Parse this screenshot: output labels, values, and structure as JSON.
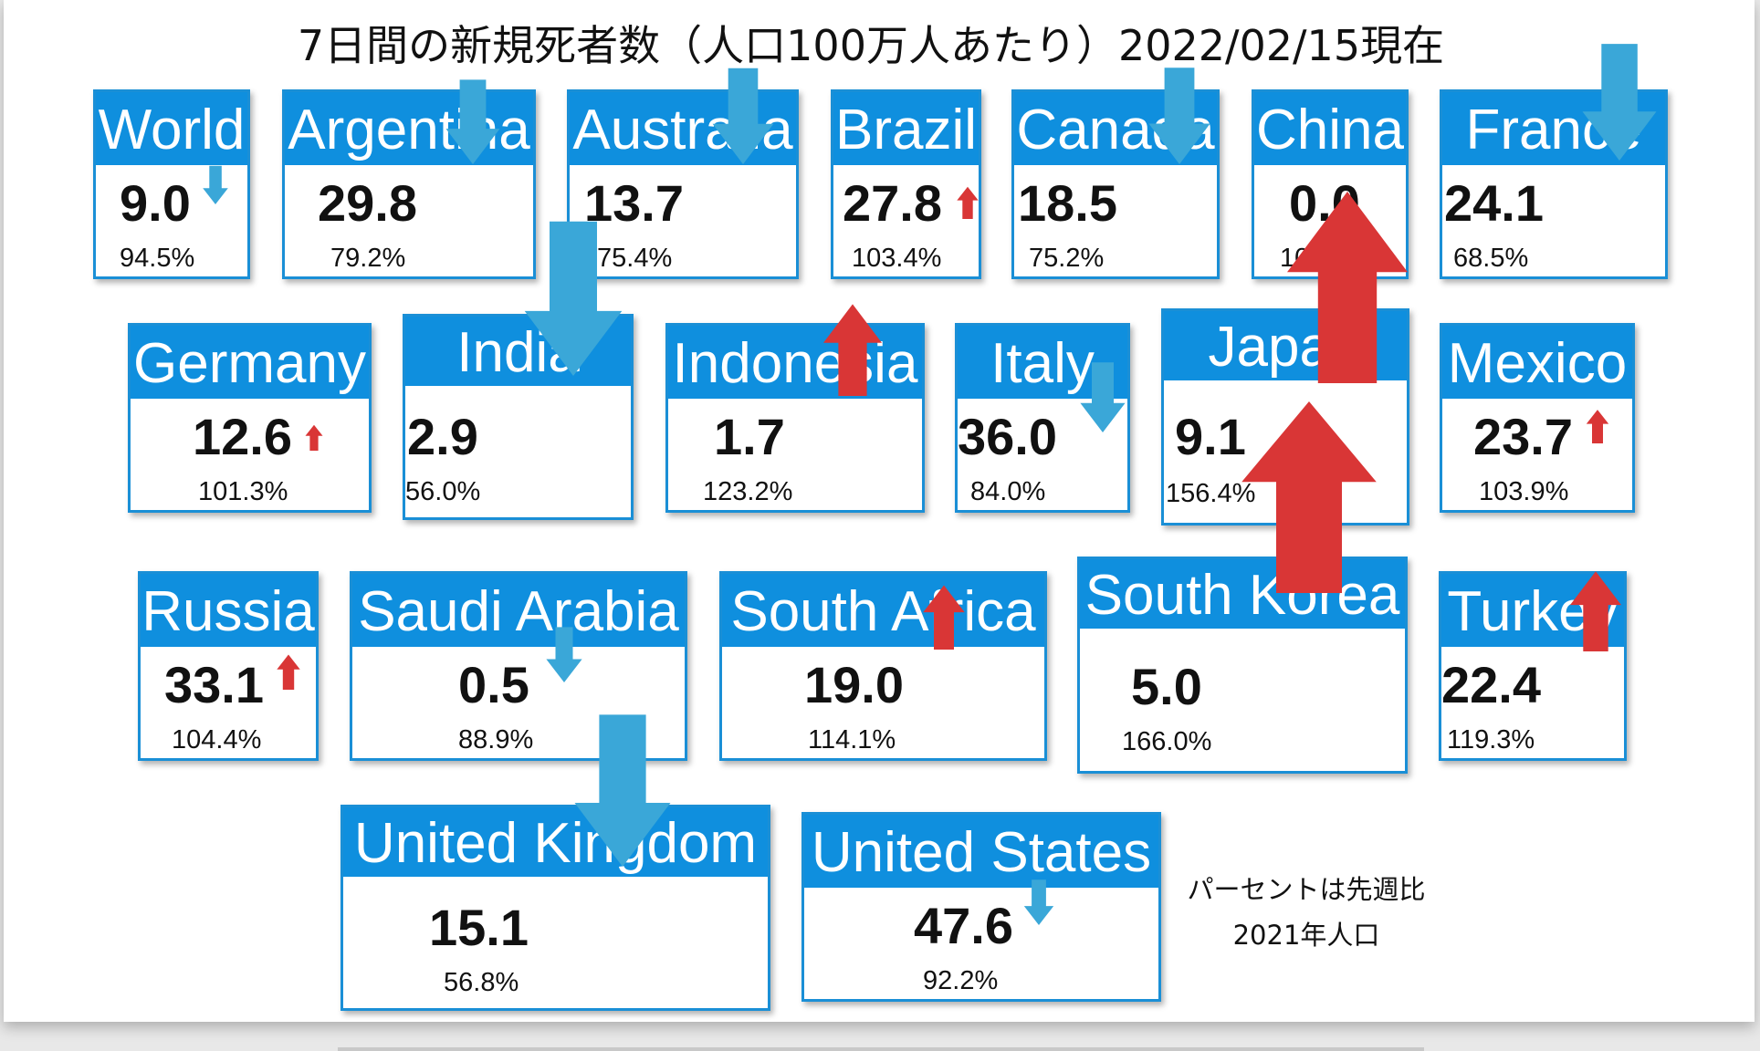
{
  "title": "7日間の新規死者数（人口100万人あたり）2022/02/15現在",
  "notes": [
    "パーセントは先週比",
    "2021年人口"
  ],
  "colors": {
    "header": "#0f8fde",
    "down": "#3aa7d8",
    "up": "#d93636"
  },
  "chart_data": {
    "type": "table",
    "title": "7日間の新規死者数（人口100万人あたり）2022/02/15現在",
    "columns": [
      "country",
      "deaths_per_million_7d",
      "week_over_week"
    ],
    "rows": [
      {
        "country": "World",
        "value": "9.0",
        "pct": "94.5%",
        "ratio": 0.945,
        "direction": "down"
      },
      {
        "country": "Argentina",
        "value": "29.8",
        "pct": "79.2%",
        "ratio": 0.792,
        "direction": "down"
      },
      {
        "country": "Australia",
        "value": "13.7",
        "pct": "75.4%",
        "ratio": 0.754,
        "direction": "down"
      },
      {
        "country": "Brazil",
        "value": "27.8",
        "pct": "103.4%",
        "ratio": 1.034,
        "direction": "up"
      },
      {
        "country": "Canada",
        "value": "18.5",
        "pct": "75.2%",
        "ratio": 0.752,
        "direction": "down"
      },
      {
        "country": "China",
        "value": "0.0",
        "pct": "100.0%",
        "ratio": 1.0,
        "direction": "none"
      },
      {
        "country": "France",
        "value": "24.1",
        "pct": "68.5%",
        "ratio": 0.685,
        "direction": "down"
      },
      {
        "country": "Germany",
        "value": "12.6",
        "pct": "101.3%",
        "ratio": 1.013,
        "direction": "up"
      },
      {
        "country": "India",
        "value": "2.9",
        "pct": "56.0%",
        "ratio": 0.56,
        "direction": "down"
      },
      {
        "country": "Indonesia",
        "value": "1.7",
        "pct": "123.2%",
        "ratio": 1.232,
        "direction": "up"
      },
      {
        "country": "Italy",
        "value": "36.0",
        "pct": "84.0%",
        "ratio": 0.84,
        "direction": "down"
      },
      {
        "country": "Japan",
        "value": "9.1",
        "pct": "156.4%",
        "ratio": 1.564,
        "direction": "up"
      },
      {
        "country": "Mexico",
        "value": "23.7",
        "pct": "103.9%",
        "ratio": 1.039,
        "direction": "up"
      },
      {
        "country": "Russia",
        "value": "33.1",
        "pct": "104.4%",
        "ratio": 1.044,
        "direction": "up"
      },
      {
        "country": "Saudi Arabia",
        "value": "0.5",
        "pct": "88.9%",
        "ratio": 0.889,
        "direction": "down"
      },
      {
        "country": "South Africa",
        "value": "19.0",
        "pct": "114.1%",
        "ratio": 1.141,
        "direction": "up"
      },
      {
        "country": "South Korea",
        "value": "5.0",
        "pct": "166.0%",
        "ratio": 1.66,
        "direction": "up"
      },
      {
        "country": "Turkey",
        "value": "22.4",
        "pct": "119.3%",
        "ratio": 1.193,
        "direction": "up"
      },
      {
        "country": "United Kingdom",
        "value": "15.1",
        "pct": "56.8%",
        "ratio": 0.568,
        "direction": "down"
      },
      {
        "country": "United States",
        "value": "47.6",
        "pct": "92.2%",
        "ratio": 0.922,
        "direction": "down"
      }
    ]
  }
}
